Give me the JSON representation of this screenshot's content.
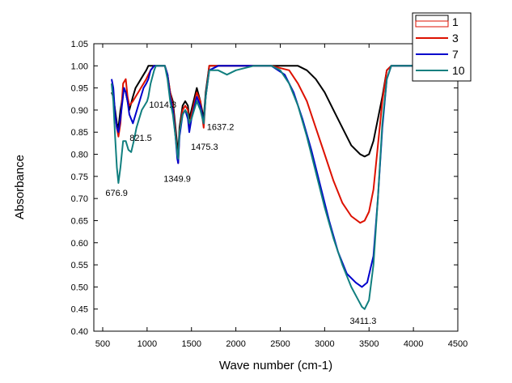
{
  "chart_data": {
    "type": "line",
    "title": "",
    "xlabel": "Wave number (cm-1)",
    "ylabel": "Absorbance",
    "xlim": [
      400,
      4500
    ],
    "ylim": [
      0.4,
      1.05
    ],
    "grid": false,
    "legend_position": "top-right",
    "x_ticks": [
      "500",
      "1000",
      "1500",
      "2000",
      "2500",
      "3000",
      "3500",
      "4000",
      "4500"
    ],
    "y_ticks": [
      "0.40",
      "0.45",
      "0.50",
      "0.55",
      "0.60",
      "0.65",
      "0.70",
      "0.75",
      "0.80",
      "0.85",
      "0.90",
      "0.95",
      "1.00",
      "1.05"
    ],
    "annotations": [
      {
        "text": "1014.3",
        "x": 1014.3,
        "y": 0.905
      },
      {
        "text": "821.5",
        "x": 821.5,
        "y": 0.83
      },
      {
        "text": "676.9",
        "x": 676.9,
        "y": 0.72
      },
      {
        "text": "1349.9",
        "x": 1349.9,
        "y": 0.76
      },
      {
        "text": "1475.3",
        "x": 1475.3,
        "y": 0.81
      },
      {
        "text": "1637.2",
        "x": 1637.2,
        "y": 0.855
      },
      {
        "text": "3411.3",
        "x": 3411.3,
        "y": 0.435
      }
    ],
    "series": [
      {
        "name": "1",
        "color": "#000000",
        "x": [
          600,
          620,
          640,
          660,
          677,
          700,
          740,
          760,
          780,
          800,
          840,
          870,
          900,
          930,
          960,
          990,
          1014,
          1040,
          1080,
          1100,
          1150,
          1200,
          1230,
          1260,
          1290,
          1320,
          1340,
          1350,
          1365,
          1400,
          1430,
          1460,
          1475,
          1500,
          1560,
          1600,
          1637,
          1660,
          1700,
          1800,
          2000,
          2500,
          2700,
          2800,
          2900,
          3000,
          3100,
          3200,
          3300,
          3400,
          3450,
          3500,
          3550,
          3600,
          3650,
          3700,
          3750,
          3850,
          4000
        ],
        "y": [
          0.94,
          0.93,
          0.9,
          0.87,
          0.86,
          0.9,
          0.95,
          0.94,
          0.92,
          0.9,
          0.93,
          0.95,
          0.96,
          0.97,
          0.98,
          0.99,
          1.0,
          1.0,
          1.0,
          1.0,
          1.0,
          1.0,
          0.98,
          0.94,
          0.92,
          0.86,
          0.82,
          0.8,
          0.86,
          0.91,
          0.92,
          0.91,
          0.88,
          0.9,
          0.95,
          0.92,
          0.88,
          0.94,
          1.0,
          1.0,
          1.0,
          1.0,
          1.0,
          0.99,
          0.97,
          0.94,
          0.9,
          0.86,
          0.82,
          0.8,
          0.795,
          0.8,
          0.83,
          0.88,
          0.93,
          0.99,
          1.0,
          1.0,
          1.0
        ]
      },
      {
        "name": "3",
        "color": "#dd1100",
        "x": [
          600,
          620,
          640,
          660,
          677,
          700,
          730,
          760,
          780,
          800,
          840,
          870,
          900,
          930,
          960,
          990,
          1014,
          1040,
          1080,
          1100,
          1150,
          1200,
          1230,
          1260,
          1290,
          1320,
          1340,
          1350,
          1365,
          1400,
          1430,
          1460,
          1475,
          1500,
          1560,
          1600,
          1637,
          1660,
          1700,
          1800,
          2000,
          2400,
          2600,
          2700,
          2800,
          2900,
          3000,
          3100,
          3200,
          3300,
          3400,
          3450,
          3500,
          3550,
          3600,
          3650,
          3700,
          3750,
          3850,
          4000
        ],
        "y": [
          0.96,
          0.94,
          0.89,
          0.86,
          0.84,
          0.87,
          0.96,
          0.97,
          0.93,
          0.91,
          0.92,
          0.93,
          0.94,
          0.95,
          0.96,
          0.97,
          0.98,
          0.99,
          1.0,
          1.0,
          1.0,
          1.0,
          0.98,
          0.94,
          0.91,
          0.85,
          0.8,
          0.78,
          0.85,
          0.9,
          0.91,
          0.9,
          0.86,
          0.89,
          0.94,
          0.92,
          0.86,
          0.93,
          1.0,
          1.0,
          1.0,
          1.0,
          0.99,
          0.96,
          0.92,
          0.86,
          0.8,
          0.74,
          0.69,
          0.66,
          0.645,
          0.65,
          0.67,
          0.72,
          0.82,
          0.92,
          0.99,
          1.0,
          1.0,
          1.0
        ]
      },
      {
        "name": "7",
        "color": "#0000cc",
        "x": [
          600,
          620,
          640,
          660,
          677,
          700,
          740,
          760,
          780,
          800,
          840,
          870,
          900,
          930,
          960,
          990,
          1014,
          1040,
          1080,
          1100,
          1150,
          1200,
          1230,
          1260,
          1290,
          1320,
          1340,
          1350,
          1365,
          1400,
          1430,
          1460,
          1475,
          1500,
          1560,
          1600,
          1637,
          1660,
          1700,
          1800,
          2000,
          2400,
          2550,
          2650,
          2750,
          2850,
          2950,
          3050,
          3150,
          3250,
          3350,
          3420,
          3480,
          3550,
          3600,
          3650,
          3700,
          3750,
          3850,
          4000
        ],
        "y": [
          0.97,
          0.95,
          0.89,
          0.86,
          0.85,
          0.88,
          0.95,
          0.94,
          0.92,
          0.89,
          0.87,
          0.89,
          0.91,
          0.93,
          0.95,
          0.96,
          0.97,
          0.99,
          1.0,
          1.0,
          1.0,
          1.0,
          0.98,
          0.93,
          0.9,
          0.84,
          0.79,
          0.78,
          0.84,
          0.89,
          0.9,
          0.88,
          0.85,
          0.88,
          0.93,
          0.91,
          0.87,
          0.93,
          0.99,
          1.0,
          1.0,
          1.0,
          0.98,
          0.94,
          0.88,
          0.81,
          0.73,
          0.65,
          0.58,
          0.53,
          0.51,
          0.5,
          0.51,
          0.57,
          0.7,
          0.86,
          0.97,
          1.0,
          1.0,
          1.0
        ]
      },
      {
        "name": "10",
        "color": "#117f7f",
        "x": [
          600,
          620,
          640,
          660,
          677,
          700,
          730,
          760,
          790,
          821,
          850,
          880,
          910,
          940,
          970,
          1000,
          1014,
          1040,
          1080,
          1100,
          1150,
          1200,
          1230,
          1260,
          1290,
          1320,
          1340,
          1350,
          1365,
          1400,
          1430,
          1460,
          1475,
          1500,
          1560,
          1600,
          1637,
          1660,
          1700,
          1800,
          1900,
          2000,
          2200,
          2400,
          2500,
          2600,
          2700,
          2800,
          2900,
          3000,
          3100,
          3200,
          3300,
          3380,
          3420,
          3450,
          3500,
          3550,
          3600,
          3650,
          3700,
          3750,
          3850,
          4000
        ],
        "y": [
          0.96,
          0.92,
          0.84,
          0.77,
          0.735,
          0.77,
          0.83,
          0.83,
          0.81,
          0.805,
          0.83,
          0.86,
          0.88,
          0.9,
          0.91,
          0.92,
          0.93,
          0.96,
          0.99,
          1.0,
          1.0,
          1.0,
          0.97,
          0.92,
          0.89,
          0.84,
          0.8,
          0.79,
          0.85,
          0.89,
          0.9,
          0.89,
          0.87,
          0.88,
          0.92,
          0.9,
          0.87,
          0.93,
          0.99,
          0.99,
          0.98,
          0.99,
          1.0,
          1.0,
          0.99,
          0.96,
          0.91,
          0.84,
          0.76,
          0.68,
          0.61,
          0.55,
          0.5,
          0.47,
          0.455,
          0.45,
          0.47,
          0.55,
          0.7,
          0.87,
          0.97,
          1.0,
          1.0,
          1.0
        ]
      }
    ]
  }
}
